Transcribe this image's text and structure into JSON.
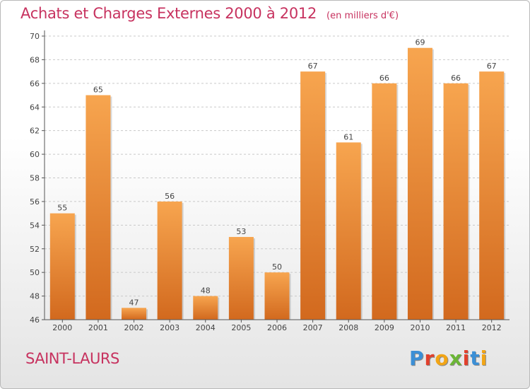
{
  "title": "Achats et Charges Externes 2000 à 2012",
  "unit_label": "(en milliers d'€)",
  "commune": "SAINT-LAURS",
  "logo": {
    "text": "Proxiti",
    "colors": [
      "#3b8fd6",
      "#e2402c",
      "#f2a516",
      "#6bb536",
      "#e2402c",
      "#3b8fd6",
      "#f2a516"
    ]
  },
  "colors": {
    "bar_top": "#f7a54f",
    "bar_bottom": "#d2691e",
    "title": "#c7325f",
    "grid": "#c9c9c9"
  },
  "chart_data": {
    "type": "bar",
    "title": "Achats et Charges Externes 2000 à 2012",
    "categories": [
      "2000",
      "2001",
      "2002",
      "2003",
      "2004",
      "2005",
      "2006",
      "2007",
      "2008",
      "2009",
      "2010",
      "2011",
      "2012"
    ],
    "values": [
      55,
      65,
      47,
      56,
      48,
      53,
      50,
      67,
      61,
      66,
      69,
      66,
      67
    ],
    "ylim": [
      46,
      70
    ],
    "yticks": [
      46,
      48,
      50,
      52,
      54,
      56,
      58,
      60,
      62,
      64,
      66,
      68,
      70
    ],
    "grid": true,
    "data_labels": true
  }
}
